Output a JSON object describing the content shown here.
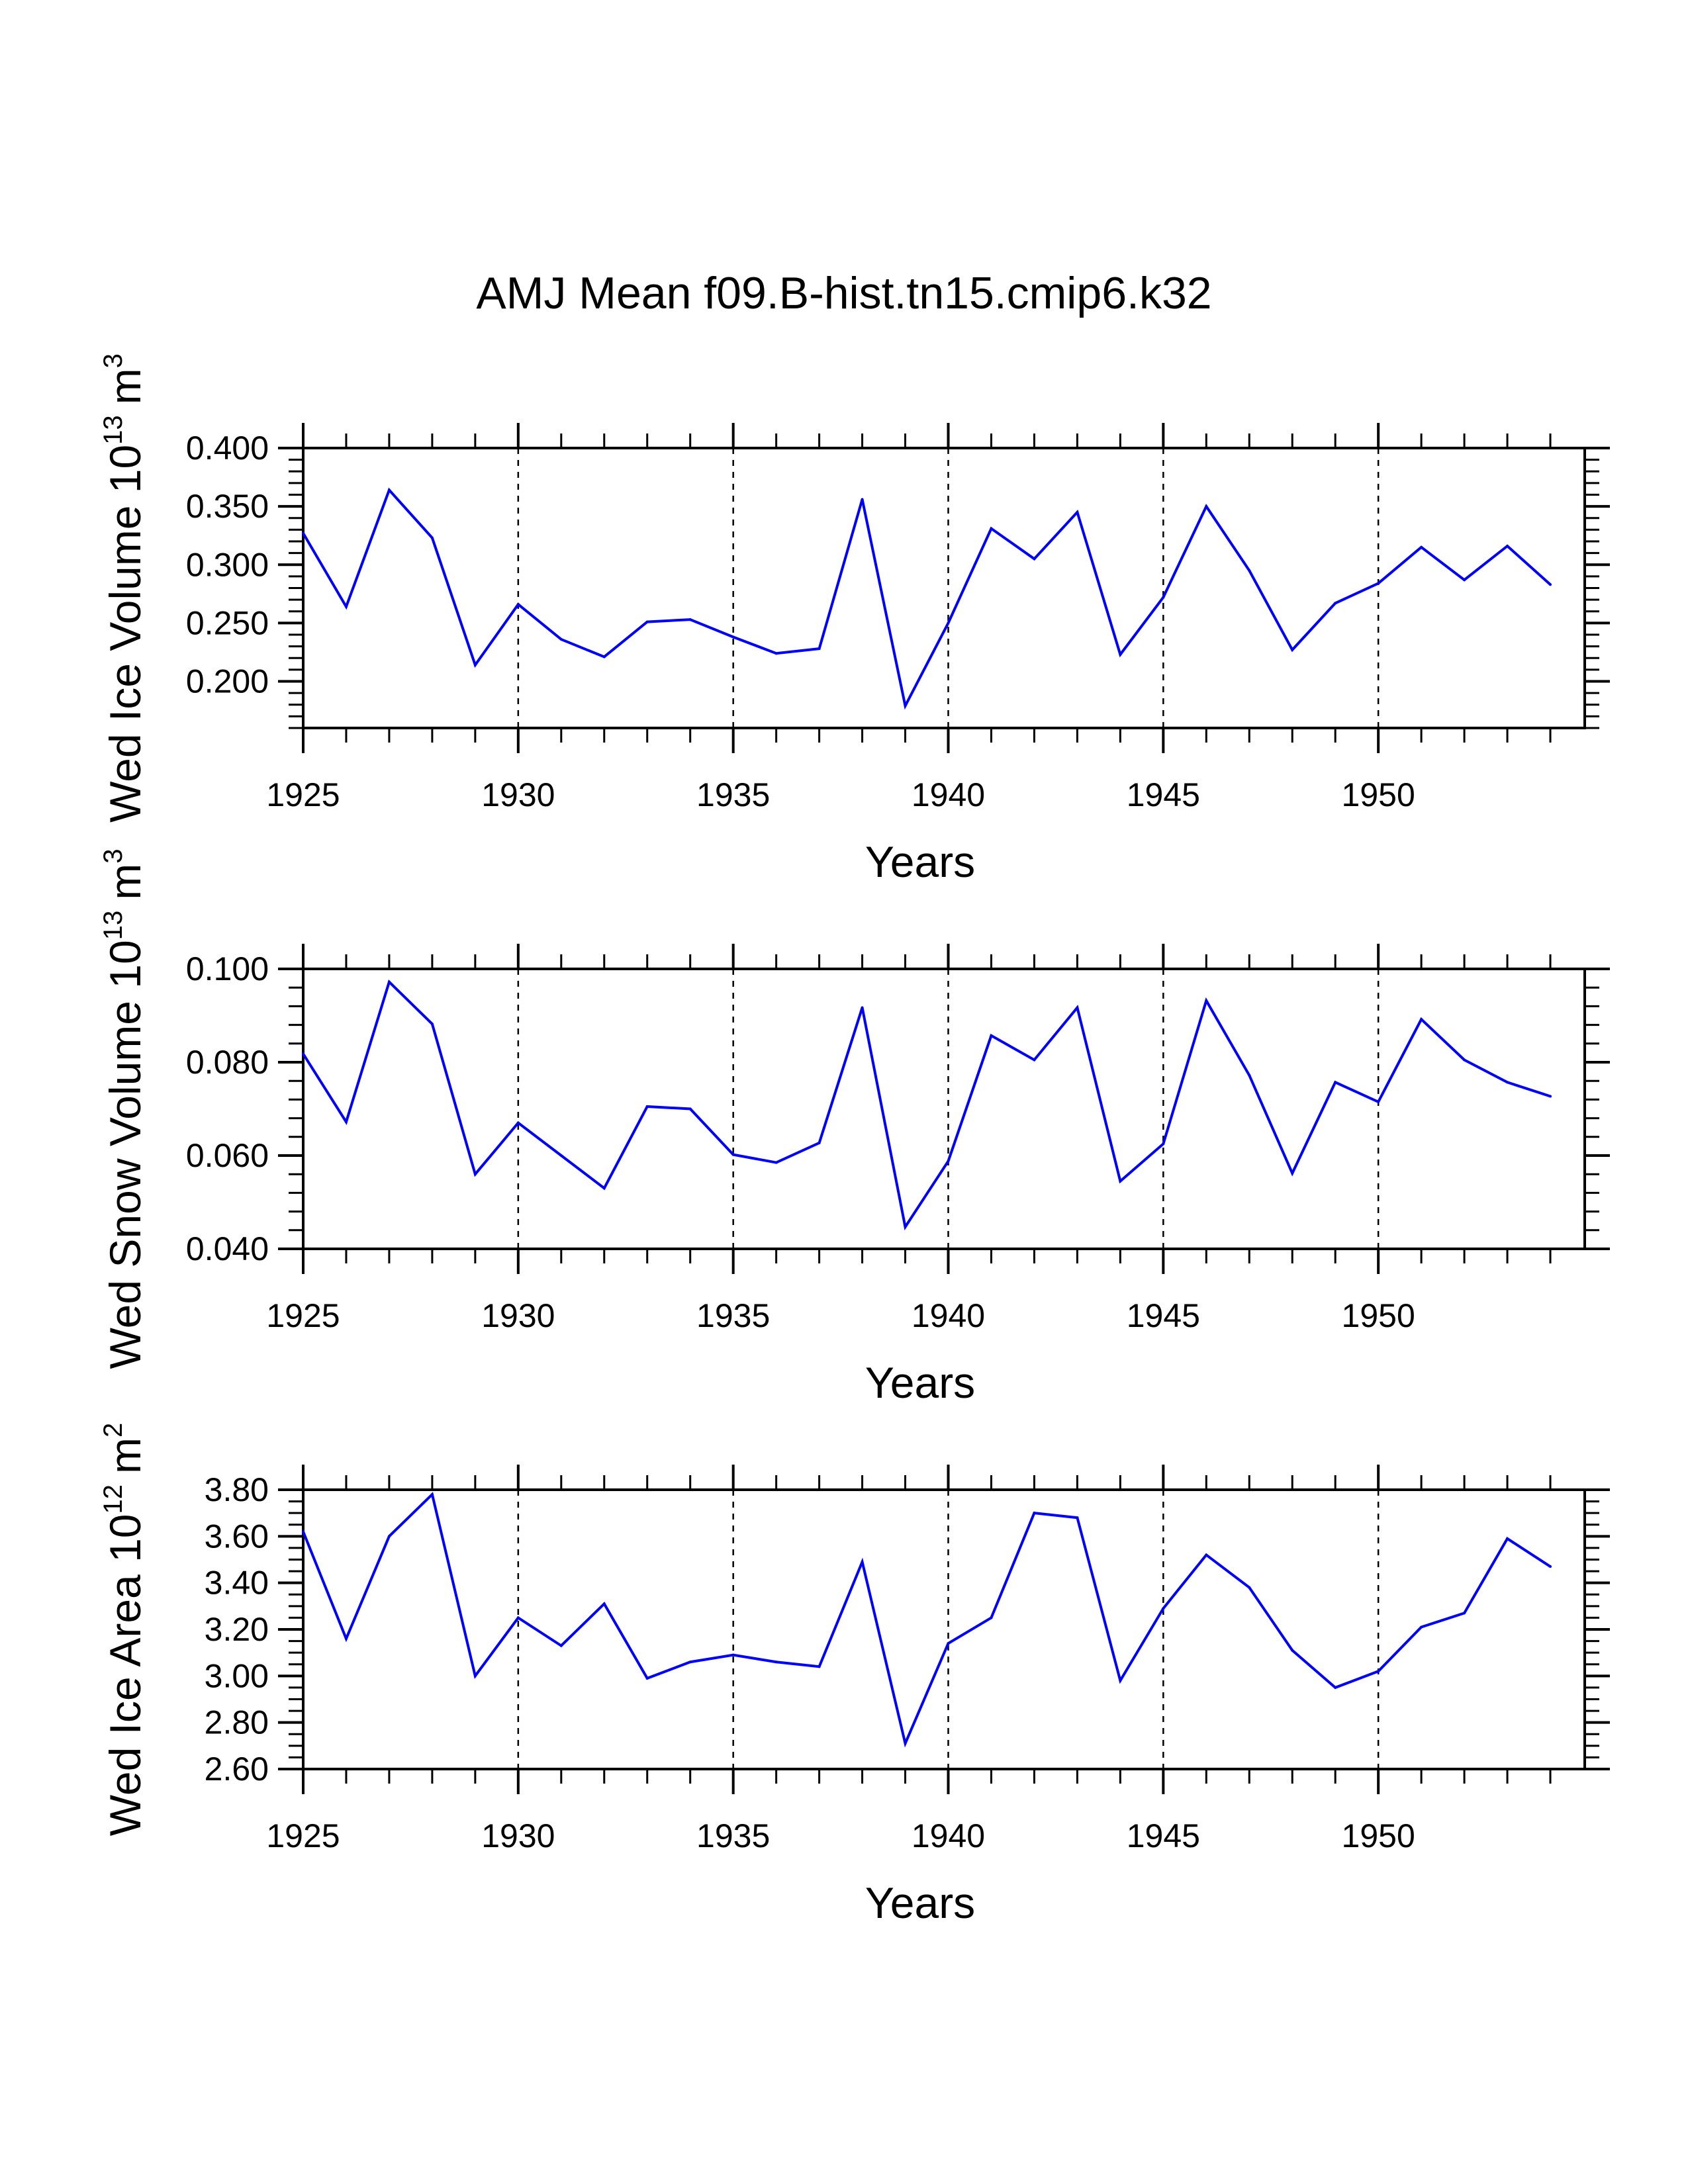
{
  "figure": {
    "title": "AMJ Mean f09.B-hist.tn15.cmip6.k32",
    "line_color": "#0000ff"
  },
  "chart_data": [
    {
      "type": "line",
      "title": "AMJ Mean f09.B-hist.tn15.cmip6.k32",
      "xlabel": "Years",
      "ylabel": "Wed Ice Volume 10",
      "ylabel_exponent": "13",
      "ylabel_unit": "m",
      "ylabel_unit_exponent": "3",
      "x": [
        1925,
        1926,
        1927,
        1928,
        1929,
        1930,
        1931,
        1932,
        1933,
        1934,
        1935,
        1936,
        1937,
        1938,
        1939,
        1940,
        1941,
        1942,
        1943,
        1944,
        1945,
        1946,
        1947,
        1948,
        1949,
        1950,
        1951,
        1952,
        1953,
        1954
      ],
      "values": [
        0.327,
        0.264,
        0.364,
        0.323,
        0.214,
        0.266,
        0.236,
        0.221,
        0.251,
        0.253,
        0.238,
        0.224,
        0.228,
        0.356,
        0.179,
        0.25,
        0.331,
        0.305,
        0.345,
        0.223,
        0.272,
        0.35,
        0.295,
        0.227,
        0.267,
        0.284,
        0.315,
        0.287,
        0.316,
        0.283
      ],
      "xlim": [
        1925,
        1954.8
      ],
      "ylim": [
        0.16,
        0.4
      ],
      "xticks": [
        1925,
        1930,
        1935,
        1940,
        1945,
        1950
      ],
      "xtick_labels": [
        "1925",
        "1930",
        "1935",
        "1940",
        "1945",
        "1950"
      ],
      "yticks": [
        0.2,
        0.25,
        0.3,
        0.35,
        0.4
      ],
      "ytick_labels": [
        "0.200",
        "0.250",
        "0.300",
        "0.350",
        "0.400"
      ],
      "yminor_step": 0.01,
      "vlines": [
        1930,
        1935,
        1940,
        1945,
        1950
      ]
    },
    {
      "type": "line",
      "xlabel": "Years",
      "ylabel": "Wed Snow Volume 10",
      "ylabel_exponent": "13",
      "ylabel_unit": "m",
      "ylabel_unit_exponent": "3",
      "x": [
        1925,
        1926,
        1927,
        1928,
        1929,
        1930,
        1931,
        1932,
        1933,
        1934,
        1935,
        1936,
        1937,
        1938,
        1939,
        1940,
        1941,
        1942,
        1943,
        1944,
        1945,
        1946,
        1947,
        1948,
        1949,
        1950,
        1951,
        1952,
        1953,
        1954
      ],
      "values": [
        0.0818,
        0.0672,
        0.0972,
        0.0882,
        0.056,
        0.067,
        0.06,
        0.053,
        0.0705,
        0.07,
        0.0602,
        0.0585,
        0.0627,
        0.0917,
        0.0447,
        0.0588,
        0.0857,
        0.0805,
        0.0917,
        0.0545,
        0.0625,
        0.0932,
        0.0772,
        0.0562,
        0.0757,
        0.0715,
        0.0892,
        0.0805,
        0.0757,
        0.0727
      ],
      "xlim": [
        1925,
        1954.8
      ],
      "ylim": [
        0.04,
        0.1
      ],
      "xticks": [
        1925,
        1930,
        1935,
        1940,
        1945,
        1950
      ],
      "xtick_labels": [
        "1925",
        "1930",
        "1935",
        "1940",
        "1945",
        "1950"
      ],
      "yticks": [
        0.04,
        0.06,
        0.08,
        0.1
      ],
      "ytick_labels": [
        "0.040",
        "0.060",
        "0.080",
        "0.100"
      ],
      "yminor_step": 0.004,
      "vlines": [
        1930,
        1935,
        1940,
        1945,
        1950
      ]
    },
    {
      "type": "line",
      "xlabel": "Years",
      "ylabel": "Wed Ice Area 10",
      "ylabel_exponent": "12",
      "ylabel_unit": "m",
      "ylabel_unit_exponent": "2",
      "x": [
        1925,
        1926,
        1927,
        1928,
        1929,
        1930,
        1931,
        1932,
        1933,
        1934,
        1935,
        1936,
        1937,
        1938,
        1939,
        1940,
        1941,
        1942,
        1943,
        1944,
        1945,
        1946,
        1947,
        1948,
        1949,
        1950,
        1951,
        1952,
        1953,
        1954
      ],
      "values": [
        3.62,
        3.16,
        3.6,
        3.78,
        3.0,
        3.25,
        3.13,
        3.31,
        2.99,
        3.06,
        3.09,
        3.06,
        3.04,
        3.49,
        2.71,
        3.14,
        3.25,
        3.7,
        3.68,
        2.98,
        3.29,
        3.52,
        3.38,
        3.11,
        2.95,
        3.02,
        3.21,
        3.27,
        3.59,
        3.47
      ],
      "xlim": [
        1925,
        1954.8
      ],
      "ylim": [
        2.6,
        3.8
      ],
      "xticks": [
        1925,
        1930,
        1935,
        1940,
        1945,
        1950
      ],
      "xtick_labels": [
        "1925",
        "1930",
        "1935",
        "1940",
        "1945",
        "1950"
      ],
      "yticks": [
        2.6,
        2.8,
        3.0,
        3.2,
        3.4,
        3.6,
        3.8
      ],
      "ytick_labels": [
        "2.60",
        "2.80",
        "3.00",
        "3.20",
        "3.40",
        "3.60",
        "3.80"
      ],
      "yminor_step": 0.05,
      "vlines": [
        1930,
        1935,
        1940,
        1945,
        1950
      ]
    }
  ]
}
